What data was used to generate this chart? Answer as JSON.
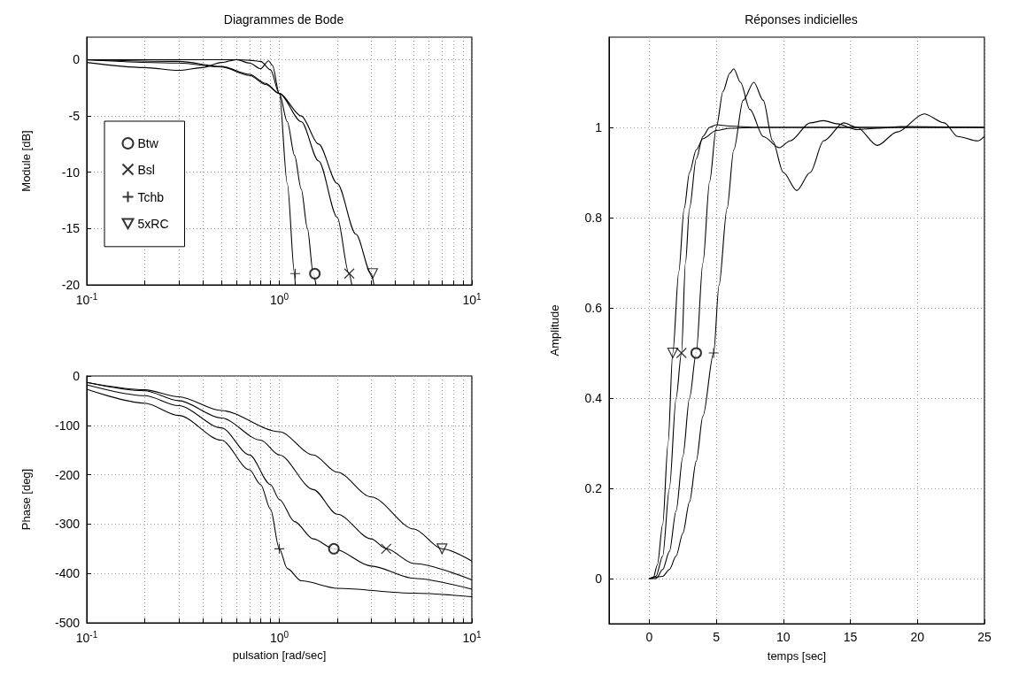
{
  "chart_data": [
    {
      "type": "line",
      "title": "Diagrammes de Bode",
      "ylabel": "Module [dB]",
      "log": "x",
      "grid": true,
      "legend": "left",
      "xlim": [
        0.1,
        10
      ],
      "xticks": [
        {
          "value": 0.1,
          "label": "10$^{-1}$"
        },
        {
          "value": 0.2,
          "label": null
        },
        {
          "value": 0.3,
          "label": null
        },
        {
          "value": 0.4,
          "label": null
        },
        {
          "value": 0.5,
          "label": null
        },
        {
          "value": 0.6,
          "label": null
        },
        {
          "value": 0.7,
          "label": null
        },
        {
          "value": 0.8,
          "label": null
        },
        {
          "value": 0.9,
          "label": null
        },
        {
          "value": 1,
          "label": "10$^{0}$"
        },
        {
          "value": 2,
          "label": null
        },
        {
          "value": 3,
          "label": null
        },
        {
          "value": 4,
          "label": null
        },
        {
          "value": 5,
          "label": null
        },
        {
          "value": 6,
          "label": null
        },
        {
          "value": 7,
          "label": null
        },
        {
          "value": 8,
          "label": null
        },
        {
          "value": 9,
          "label": null
        },
        {
          "value": 10,
          "label": "10$^{1}$"
        }
      ],
      "ylim": [
        -20,
        2
      ],
      "yticks": [
        -20,
        -15,
        -10,
        -5,
        0
      ],
      "series": [
        {
          "type": "line",
          "color": "#000000",
          "marker": "none",
          "x": [
            0.1,
            0.2,
            0.3,
            0.4,
            0.5,
            0.6,
            0.7,
            0.8,
            0.9,
            1,
            1.1,
            1.2,
            1.3,
            1.4,
            1.5,
            1.55
          ],
          "values": [
            0,
            0,
            0,
            0,
            0,
            0,
            -0.05,
            -0.15,
            -0.9,
            -3,
            -5.5,
            -8.5,
            -11.5,
            -15,
            -19,
            -20
          ]
        },
        {
          "type": "line",
          "color": "#000000",
          "marker": "none",
          "x": [
            0.1,
            0.3,
            0.5,
            0.7,
            0.85,
            1,
            1.3,
            1.6,
            2,
            2.3,
            2.38
          ],
          "values": [
            0,
            -0.15,
            -0.6,
            -1.3,
            -2.1,
            -3,
            -5.5,
            -9,
            -14,
            -19,
            -20
          ]
        },
        {
          "type": "line",
          "color": "#000000",
          "marker": "none",
          "x": [
            0.1,
            0.2,
            0.3,
            0.4,
            0.5,
            0.6,
            0.7,
            0.8,
            0.88,
            0.92,
            1,
            1.1,
            1.2,
            1.21
          ],
          "values": [
            -0.25,
            -0.7,
            -0.95,
            -0.7,
            -0.25,
            0,
            -0.3,
            -0.8,
            -0.1,
            -0.5,
            -3,
            -11,
            -19,
            -20
          ]
        },
        {
          "type": "line",
          "color": "#000000",
          "marker": "none",
          "x": [
            0.1,
            0.3,
            0.5,
            0.7,
            0.85,
            1,
            1.3,
            1.6,
            2,
            2.5,
            3,
            3.1
          ],
          "values": [
            -0.02,
            -0.3,
            -0.65,
            -1.4,
            -2.2,
            -3,
            -5,
            -7.5,
            -11,
            -15.5,
            -19,
            -20
          ]
        },
        {
          "type": "scatter",
          "name": "Btw",
          "color": "#000000",
          "marker": "circle",
          "x": [
            1.53
          ],
          "values": [
            -19
          ]
        },
        {
          "type": "scatter",
          "name": "Bsl",
          "color": "#000000",
          "marker": "cross",
          "x": [
            2.31
          ],
          "values": [
            -19
          ]
        },
        {
          "type": "scatter",
          "name": "Tchb",
          "color": "#000000",
          "marker": "plus",
          "x": [
            1.21
          ],
          "values": [
            -19
          ]
        },
        {
          "type": "scatter",
          "name": "5xRC",
          "color": "#000000",
          "marker": "triangle",
          "x": [
            3.05
          ],
          "values": [
            -19
          ]
        }
      ]
    },
    {
      "type": "line",
      "xlabel": "pulsation [rad/sec]",
      "ylabel": "Phase [deg]",
      "log": "x",
      "grid": true,
      "xlim": [
        0.1,
        10
      ],
      "xticks": [
        {
          "value": 0.1,
          "label": "10$^{-1}$"
        },
        {
          "value": 0.2,
          "label": null
        },
        {
          "value": 0.3,
          "label": null
        },
        {
          "value": 0.4,
          "label": null
        },
        {
          "value": 0.5,
          "label": null
        },
        {
          "value": 0.6,
          "label": null
        },
        {
          "value": 0.7,
          "label": null
        },
        {
          "value": 0.8,
          "label": null
        },
        {
          "value": 0.9,
          "label": null
        },
        {
          "value": 1,
          "label": "10$^{0}$"
        },
        {
          "value": 2,
          "label": null
        },
        {
          "value": 3,
          "label": null
        },
        {
          "value": 4,
          "label": null
        },
        {
          "value": 5,
          "label": null
        },
        {
          "value": 6,
          "label": null
        },
        {
          "value": 7,
          "label": null
        },
        {
          "value": 8,
          "label": null
        },
        {
          "value": 9,
          "label": null
        },
        {
          "value": 10,
          "label": "10$^{1}$"
        }
      ],
      "ylim": [
        -500,
        0
      ],
      "yticks": [
        -500,
        -400,
        -300,
        -200,
        -100,
        0
      ],
      "series": [
        {
          "type": "line",
          "color": "#000000",
          "marker": "none",
          "x": [
            0.1,
            0.2,
            0.3,
            0.5,
            0.7,
            0.9,
            1,
            1.2,
            1.5,
            1.92,
            3,
            5,
            10
          ],
          "values": [
            -18,
            -40,
            -60,
            -105,
            -160,
            -220,
            -250,
            -295,
            -330,
            -350,
            -385,
            -410,
            -432
          ]
        },
        {
          "type": "line",
          "color": "#000000",
          "marker": "none",
          "x": [
            0.1,
            0.2,
            0.3,
            0.5,
            0.8,
            1,
            1.5,
            2,
            3,
            3.59,
            5,
            10
          ],
          "values": [
            -13,
            -30,
            -50,
            -85,
            -130,
            -160,
            -230,
            -280,
            -330,
            -350,
            -380,
            -413
          ]
        },
        {
          "type": "line",
          "color": "#000000",
          "marker": "none",
          "x": [
            0.1,
            0.2,
            0.3,
            0.5,
            0.7,
            0.8,
            0.9,
            1,
            1.1,
            1.3,
            2,
            5,
            10
          ],
          "values": [
            -27,
            -55,
            -80,
            -130,
            -190,
            -220,
            -270,
            -350,
            -390,
            -415,
            -430,
            -440,
            -447
          ]
        },
        {
          "type": "line",
          "color": "#000000",
          "marker": "none",
          "x": [
            0.1,
            0.2,
            0.3,
            0.5,
            1,
            1.5,
            2,
            3,
            5,
            7,
            10
          ],
          "values": [
            -13,
            -28,
            -42,
            -70,
            -113,
            -160,
            -195,
            -245,
            -310,
            -350,
            -375
          ]
        },
        {
          "type": "scatter",
          "color": "#000000",
          "marker": "circle",
          "x": [
            1.92
          ],
          "values": [
            -350
          ]
        },
        {
          "type": "scatter",
          "color": "#000000",
          "marker": "cross",
          "x": [
            3.59
          ],
          "values": [
            -350
          ]
        },
        {
          "type": "scatter",
          "color": "#000000",
          "marker": "plus",
          "x": [
            1.0
          ],
          "values": [
            -350
          ]
        },
        {
          "type": "scatter",
          "color": "#000000",
          "marker": "triangle",
          "x": [
            7.0
          ],
          "values": [
            -350
          ]
        }
      ]
    },
    {
      "type": "line",
      "title": "Réponses indicielles",
      "xlabel": "temps [sec]",
      "ylabel": "Amplitude",
      "grid": true,
      "xlim": [
        -3,
        25
      ],
      "xticks": [
        0,
        5,
        10,
        15,
        20,
        25
      ],
      "ylim": [
        -0.1,
        1.2
      ],
      "yticks": [
        0,
        0.2,
        0.4,
        0.6,
        0.8,
        1
      ],
      "series": [
        {
          "type": "line",
          "color": "#000000",
          "marker": "none",
          "x": [
            0,
            0.5,
            1,
            1.5,
            2,
            2.5,
            3,
            3.5,
            4,
            4.5,
            5,
            5.5,
            6,
            6.3,
            6.8,
            7.5,
            8.5,
            9.7,
            10.5,
            12,
            13,
            14,
            15.5,
            17,
            19,
            25
          ],
          "values": [
            0,
            0,
            0.02,
            0.06,
            0.15,
            0.27,
            0.4,
            0.5,
            0.7,
            0.88,
            1.0,
            1.08,
            1.12,
            1.13,
            1.1,
            1.04,
            0.98,
            0.955,
            0.97,
            1.01,
            1.015,
            1.008,
            0.995,
            0.998,
            1.002,
            1
          ]
        },
        {
          "type": "line",
          "color": "#000000",
          "marker": "none",
          "x": [
            0,
            0.5,
            1,
            1.5,
            2,
            2.4,
            2.7,
            3,
            3.5,
            4,
            4.5,
            5,
            6,
            8,
            25
          ],
          "values": [
            0,
            0.005,
            0.05,
            0.2,
            0.4,
            0.5,
            0.7,
            0.82,
            0.93,
            0.98,
            1.0,
            1.006,
            1.003,
            1,
            1
          ]
        },
        {
          "type": "line",
          "color": "#000000",
          "marker": "none",
          "x": [
            0,
            1,
            1.5,
            2,
            2.5,
            3,
            3.5,
            4,
            4.8,
            5.2,
            5.8,
            6.3,
            7,
            7.8,
            8.5,
            9.2,
            10,
            11,
            12,
            13,
            14.5,
            15.5,
            17,
            18.5,
            20.5,
            22,
            23,
            24.5,
            25
          ],
          "values": [
            0,
            0.005,
            0.02,
            0.05,
            0.1,
            0.17,
            0.26,
            0.36,
            0.5,
            0.65,
            0.82,
            0.95,
            1.06,
            1.1,
            1.06,
            0.97,
            0.9,
            0.86,
            0.9,
            0.97,
            1.01,
            1.0,
            0.96,
            0.99,
            1.03,
            1.01,
            0.98,
            0.97,
            0.98
          ]
        },
        {
          "type": "line",
          "color": "#000000",
          "marker": "none",
          "x": [
            0,
            0.3,
            0.6,
            1,
            1.4,
            1.75,
            2.2,
            2.6,
            3,
            3.5,
            4,
            5,
            6,
            8,
            25
          ],
          "values": [
            0,
            0.002,
            0.03,
            0.12,
            0.3,
            0.5,
            0.68,
            0.82,
            0.9,
            0.95,
            0.975,
            0.993,
            0.998,
            1,
            1
          ]
        },
        {
          "type": "scatter",
          "color": "#000000",
          "marker": "circle",
          "x": [
            3.5
          ],
          "values": [
            0.5
          ]
        },
        {
          "type": "scatter",
          "color": "#000000",
          "marker": "cross",
          "x": [
            2.4
          ],
          "values": [
            0.5
          ]
        },
        {
          "type": "scatter",
          "color": "#000000",
          "marker": "plus",
          "x": [
            4.8
          ],
          "values": [
            0.5
          ]
        },
        {
          "type": "scatter",
          "color": "#000000",
          "marker": "triangle",
          "x": [
            1.75
          ],
          "values": [
            0.5
          ]
        }
      ]
    }
  ]
}
